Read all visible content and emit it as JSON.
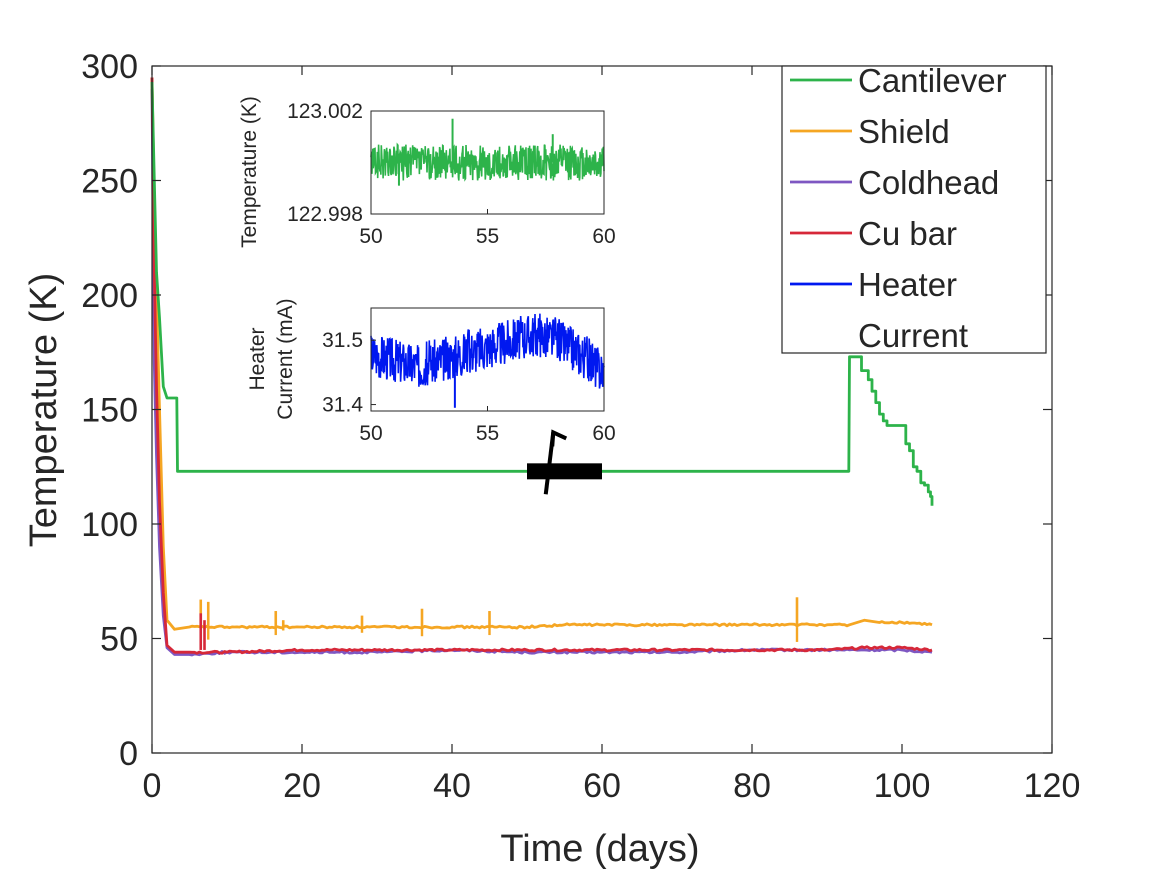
{
  "chart_data": [
    {
      "type": "line",
      "xlabel": "Time (days)",
      "ylabel": "Temperature (K)",
      "xlim": [
        0,
        120
      ],
      "ylim": [
        0,
        300
      ],
      "xticks": [
        0,
        20,
        40,
        60,
        80,
        100,
        120
      ],
      "yticks": [
        0,
        50,
        100,
        150,
        200,
        250,
        300
      ],
      "grid": false,
      "legend": {
        "placement": "top-right",
        "entries": [
          {
            "label": "Cantilever",
            "color": "#2db34a"
          },
          {
            "label": "Shield",
            "color": "#f5a623"
          },
          {
            "label": "Coldhead",
            "color": "#7e57c2"
          },
          {
            "label": "Cu bar",
            "color": "#d62839"
          },
          {
            "label": "Heater",
            "color": "#0018f0"
          },
          {
            "label": "Current",
            "color": ""
          }
        ]
      },
      "series": [
        {
          "name": "Cantilever",
          "color": "#2db34a",
          "x": [
            0,
            0.3,
            0.6,
            1.0,
            1.5,
            2.0,
            2.1,
            3.3,
            3.4,
            92.9,
            93.0,
            94.5,
            94.6,
            95.5,
            96.0,
            96.5,
            97.0,
            97.5,
            98.0,
            99.5,
            100.5,
            101.0,
            101.5,
            102.0,
            102.5,
            103.0,
            103.5,
            103.8,
            104.0
          ],
          "y": [
            293,
            250,
            210,
            190,
            160,
            155,
            155,
            155,
            123,
            123,
            173,
            173,
            167,
            163,
            158,
            153,
            148,
            145,
            143,
            143,
            135,
            132,
            125,
            123,
            118,
            117,
            114,
            112,
            108
          ]
        },
        {
          "name": "Shield",
          "color": "#f5a623",
          "x": [
            0,
            0.3,
            0.6,
            1.0,
            1.5,
            2.0,
            3.0,
            5.0,
            10.0,
            20.0,
            30.0,
            40.0,
            50.0,
            55.0,
            60.0,
            70.0,
            80.0,
            90.0,
            93.0,
            95.0,
            97.0,
            100.0,
            104.0
          ],
          "y": [
            295,
            240,
            200,
            150,
            90,
            58,
            54,
            55,
            55,
            55,
            55,
            55,
            55,
            56,
            56,
            56,
            56,
            56,
            56,
            58,
            57,
            57,
            56
          ],
          "spikes": [
            [
              6.5,
              67
            ],
            [
              7.5,
              66
            ],
            [
              16.5,
              62
            ],
            [
              17.5,
              58
            ],
            [
              28,
              60
            ],
            [
              36,
              63
            ],
            [
              45,
              62
            ],
            [
              86,
              68
            ]
          ]
        },
        {
          "name": "Coldhead",
          "color": "#7e57c2",
          "x": [
            0,
            0.3,
            0.6,
            1.0,
            1.5,
            2.0,
            3.0,
            5.0,
            10.0,
            20.0,
            30.0,
            40.0,
            50.0,
            60.0,
            70.0,
            80.0,
            90.0,
            95.0,
            100.0,
            104.0
          ],
          "y": [
            290,
            170,
            130,
            90,
            60,
            46,
            43,
            43,
            44,
            44,
            44,
            45,
            44,
            44,
            44,
            45,
            45,
            45,
            45,
            44
          ]
        },
        {
          "name": "Cu bar",
          "color": "#d62839",
          "x": [
            0,
            0.3,
            0.6,
            1.0,
            1.5,
            2.0,
            3.0,
            5.0,
            10.0,
            20.0,
            30.0,
            40.0,
            50.0,
            60.0,
            70.0,
            80.0,
            90.0,
            95.0,
            100.0,
            104.0
          ],
          "y": [
            295,
            210,
            160,
            110,
            70,
            47,
            44,
            44,
            44,
            45,
            45,
            45,
            45,
            45,
            45,
            45,
            45,
            46,
            46,
            45
          ],
          "spikes": [
            [
              6.5,
              61
            ],
            [
              7.0,
              58
            ]
          ]
        }
      ],
      "annotations": [
        {
          "type": "bar-marker",
          "x_start": 50,
          "x_end": 60,
          "y": 123,
          "color": "#000000"
        },
        {
          "type": "arrow",
          "from": [
            52.5,
            113
          ],
          "to": [
            53.5,
            140
          ],
          "color": "#000000"
        }
      ]
    },
    {
      "type": "line",
      "title": "",
      "xlabel": "",
      "ylabel": "Temperature (K)",
      "xlim": [
        50,
        60
      ],
      "ylim": [
        122.998,
        123.002
      ],
      "xticks": [
        50,
        55,
        60
      ],
      "yticks": [
        "122.998",
        "123.002"
      ],
      "series": [
        {
          "name": "Cantilever",
          "color": "#2db34a",
          "mean": 123.0,
          "noise_band": [
            122.9993,
            123.0007
          ],
          "spikes": [
            [
              53.5,
              123.0017
            ],
            [
              57.8,
              123.0011
            ],
            [
              51.2,
              122.9991
            ]
          ]
        }
      ]
    },
    {
      "type": "line",
      "title": "",
      "xlabel": "",
      "ylabel_lines": [
        "Heater",
        "Current (mA)"
      ],
      "xlim": [
        50,
        60
      ],
      "ylim": [
        31.39,
        31.55
      ],
      "xticks": [
        50,
        55,
        60
      ],
      "yticks": [
        "31.4",
        "31.5"
      ],
      "series": [
        {
          "name": "Heater Current",
          "color": "#0018f0",
          "x": [
            50,
            51,
            52,
            53,
            54,
            55,
            56,
            57,
            58,
            59,
            60
          ],
          "y": [
            31.48,
            31.47,
            31.46,
            31.47,
            31.48,
            31.49,
            31.5,
            31.51,
            31.5,
            31.48,
            31.45
          ],
          "noise_amplitude": 0.035
        }
      ]
    }
  ]
}
